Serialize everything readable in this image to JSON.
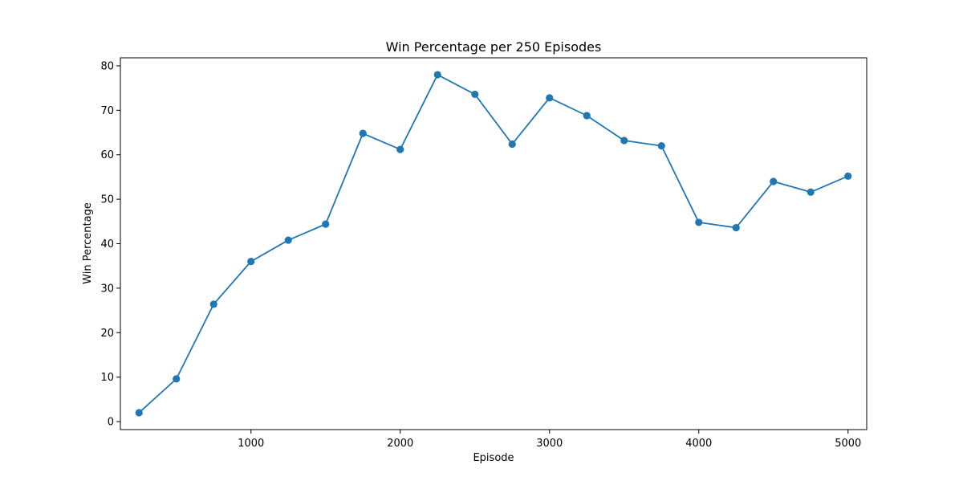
{
  "chart_data": {
    "type": "line",
    "title": "Win Percentage per 250 Episodes",
    "xlabel": "Episode",
    "ylabel": "Win Percentage",
    "xlim": [
      125,
      5125
    ],
    "ylim": [
      -1.8,
      81.8
    ],
    "xticks": [
      1000,
      2000,
      3000,
      4000,
      5000
    ],
    "yticks": [
      0,
      10,
      20,
      30,
      40,
      50,
      60,
      70,
      80
    ],
    "grid": false,
    "legend": "none",
    "series": [
      {
        "color": "#1f77b4",
        "marker": "circle",
        "x": [
          250,
          500,
          750,
          1000,
          1250,
          1500,
          1750,
          2000,
          2250,
          2500,
          2750,
          3000,
          3250,
          3500,
          3750,
          4000,
          4250,
          4500,
          4750,
          5000
        ],
        "y": [
          2.0,
          9.6,
          26.4,
          36.0,
          40.8,
          44.4,
          64.8,
          61.2,
          78.0,
          73.6,
          62.4,
          72.8,
          68.8,
          63.2,
          62.0,
          44.8,
          43.6,
          54.0,
          51.6,
          55.2
        ]
      }
    ]
  }
}
